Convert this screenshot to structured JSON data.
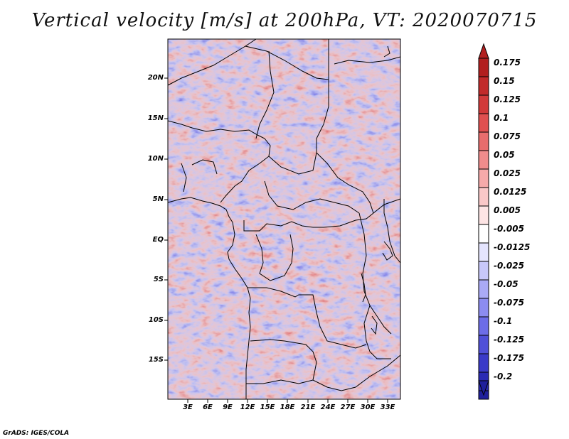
{
  "title": "Vertical velocity [m/s] at 200hPa, VT: 2020070715",
  "credit": "GrADS: IGES/COLA",
  "map": {
    "lat_labels": [
      "20N",
      "15N",
      "10N",
      "5N",
      "EQ",
      "5S",
      "10S",
      "15S"
    ],
    "lon_labels": [
      "3E",
      "6E",
      "9E",
      "12E",
      "15E",
      "18E",
      "21E",
      "24E",
      "27E",
      "30E",
      "33E"
    ]
  },
  "colorbar": {
    "labels": [
      "0.175",
      "0.15",
      "0.125",
      "0.1",
      "0.075",
      "0.05",
      "0.025",
      "0.0125",
      "0.005",
      "-0.005",
      "-0.0125",
      "-0.025",
      "-0.05",
      "-0.075",
      "-0.1",
      "-0.125",
      "-0.175",
      "-0.2"
    ],
    "colors": [
      "#b21f1f",
      "#c22a2a",
      "#d23a3a",
      "#e05050",
      "#e86d6d",
      "#f08c8c",
      "#f6aaaa",
      "#fac8c8",
      "#fde4e4",
      "#ffffff",
      "#e4e4fd",
      "#c8c8fa",
      "#aaaaf6",
      "#8c8cf0",
      "#6d6de8",
      "#5050d8",
      "#3a3ac8",
      "#2a2ab4",
      "#1f1f9c"
    ]
  }
}
